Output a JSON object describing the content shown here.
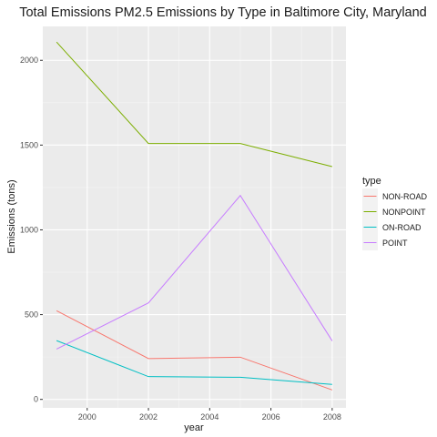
{
  "chart_data": {
    "type": "line",
    "title": "Total Emissions PM2.5 Emissions by Type in Baltimore City, Maryland",
    "xlabel": "year",
    "ylabel": "Emissions (tons)",
    "x": [
      1999,
      2002,
      2005,
      2008
    ],
    "xlim": [
      1998.55,
      2008.45
    ],
    "ylim": [
      -50,
      2200
    ],
    "x_ticks": [
      2000,
      2002,
      2004,
      2006,
      2008
    ],
    "y_ticks": [
      0,
      500,
      1000,
      1500,
      2000
    ],
    "grid": true,
    "legend_title": "type",
    "legend_position": "right",
    "series": [
      {
        "name": "NON-ROAD",
        "color": "#F8766D",
        "values": [
          522.9,
          240.8,
          248.9,
          55.8
        ]
      },
      {
        "name": "NONPOINT",
        "color": "#7CAE00",
        "values": [
          2107.6,
          1509.5,
          1509.5,
          1373.2
        ]
      },
      {
        "name": "ON-ROAD",
        "color": "#00BFC4",
        "values": [
          346.8,
          134.3,
          130.4,
          88.3
        ]
      },
      {
        "name": "POINT",
        "color": "#C77CFF",
        "values": [
          296.8,
          569.3,
          1202.5,
          344.98
        ]
      }
    ]
  }
}
